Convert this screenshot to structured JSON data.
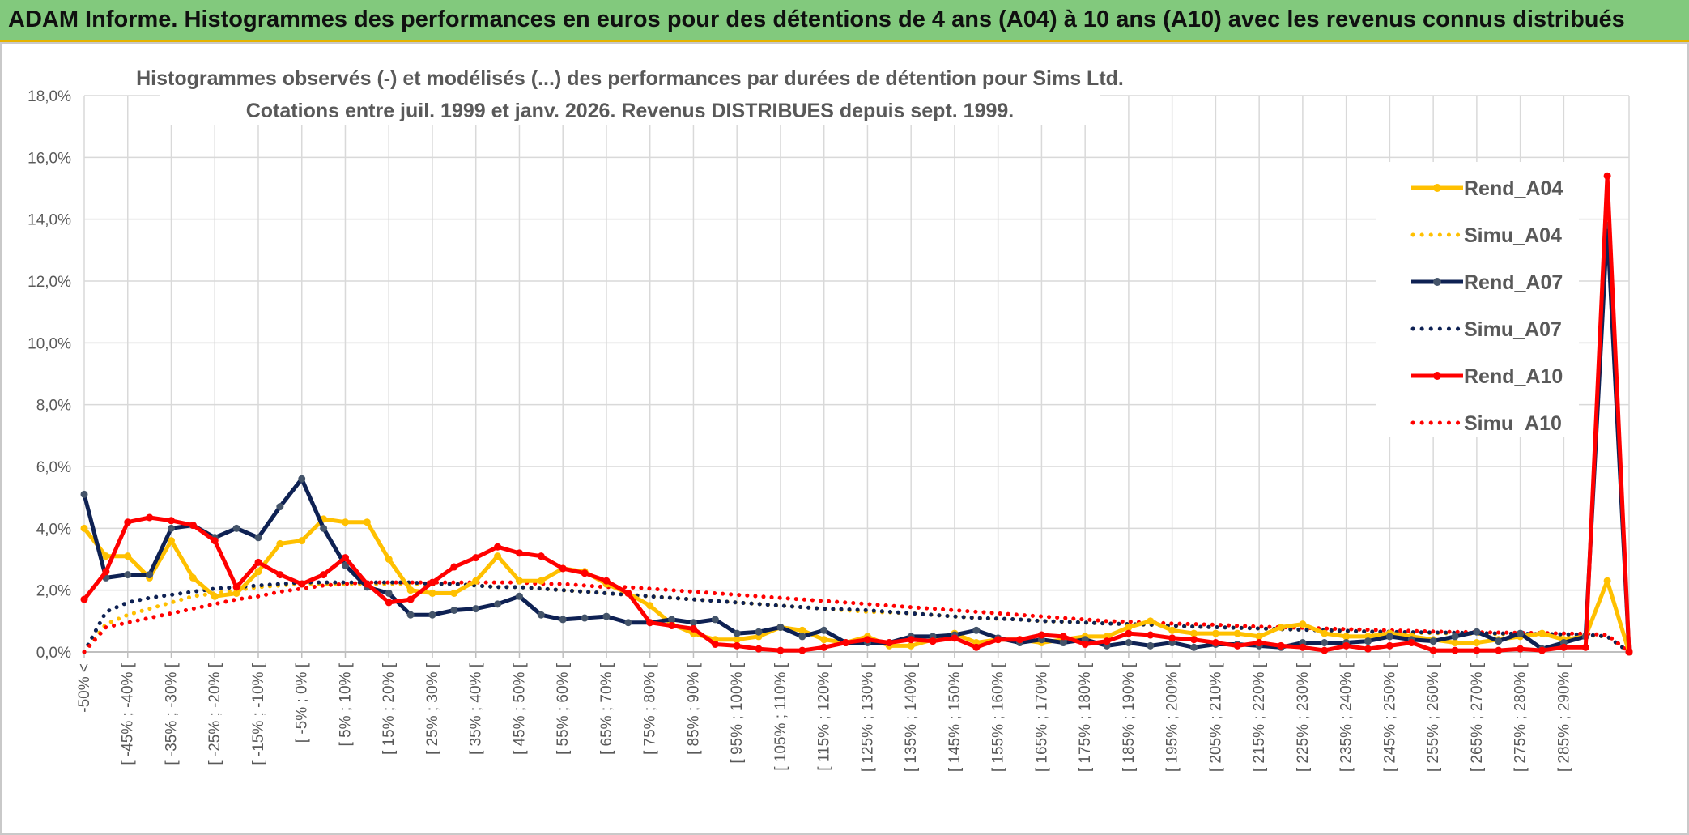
{
  "banner": {
    "title": "ADAM Informe. Histogrammes des performances en euros pour des détentions de 4 ans (A04) à 10 ans (A10) avec les revenus connus distribués"
  },
  "colors": {
    "a04": "#ffc000",
    "a07": "#0e2153",
    "a07_marker": "#44546a",
    "a10": "#ff0000",
    "grid": "#d9d9d9",
    "banner": "#82c97d"
  },
  "chart_data": {
    "type": "line",
    "title": "Histogrammes observés (-) et modélisés (...) des performances par durées de détention pour Sims Ltd.",
    "subtitle": "Cotations entre juil. 1999 et janv. 2026. Revenus DISTRIBUES depuis sept. 1999.",
    "xlabel": "",
    "ylabel": "",
    "ylim": [
      0,
      18
    ],
    "yticks": [
      "0,0%",
      "2,0%",
      "4,0%",
      "6,0%",
      "8,0%",
      "10,0%",
      "12,0%",
      "14,0%",
      "16,0%",
      "18,0%"
    ],
    "grid": true,
    "legend_position": "right",
    "category_labels": [
      "-50% <",
      "[ -45% ; -40% [",
      "[ -35% ; -30% [",
      "[ -25% ; -20% [",
      "[ -15% ; -10% [",
      "[ -5% ; 0% [",
      "[ 5% ; 10% [",
      "[ 15% ; 20% [",
      "[ 25% ; 30% [",
      "[ 35% ; 40% [",
      "[ 45% ; 50% [",
      "[ 55% ; 60% [",
      "[ 65% ; 70% [",
      "[ 75% ; 80% [",
      "[ 85% ; 90% [",
      "[ 95% ; 100% [",
      "[ 105% ; 110% [",
      "[ 115% ; 120% [",
      "[ 125% ; 130% [",
      "[ 135% ; 140% [",
      "[ 145% ; 150% [",
      "[ 155% ; 160% [",
      "[ 165% ; 170% [",
      "[ 175% ; 180% [",
      "[ 185% ; 190% [",
      "[ 195% ; 200% [",
      "[ 205% ; 210% [",
      "[ 215% ; 220% [",
      "[ 225% ; 230% [",
      "[ 235% ; 240% [",
      "[ 245% ; 250% [",
      "[ 255% ; 260% [",
      "[ 265% ; 270% [",
      "[ 275% ; 280% [",
      "[ 285% ; 290% ["
    ],
    "n_points": 72,
    "series": [
      {
        "name": "Rend_A04",
        "style": "solid",
        "color": "#ffc000",
        "values": [
          4.0,
          3.1,
          3.1,
          2.4,
          3.6,
          2.4,
          1.8,
          1.9,
          2.6,
          3.5,
          3.6,
          4.3,
          4.2,
          4.2,
          3.0,
          2.0,
          1.9,
          1.9,
          2.3,
          3.1,
          2.3,
          2.3,
          2.7,
          2.6,
          2.2,
          1.9,
          1.5,
          0.9,
          0.6,
          0.4,
          0.4,
          0.5,
          0.8,
          0.7,
          0.4,
          0.3,
          0.5,
          0.2,
          0.2,
          0.4,
          0.6,
          0.3,
          0.4,
          0.4,
          0.3,
          0.4,
          0.5,
          0.5,
          0.8,
          1.0,
          0.7,
          0.6,
          0.6,
          0.6,
          0.5,
          0.8,
          0.9,
          0.6,
          0.5,
          0.5,
          0.6,
          0.5,
          0.4,
          0.3,
          0.3,
          0.4,
          0.5,
          0.6,
          0.4,
          0.5,
          2.3,
          0.0
        ]
      },
      {
        "name": "Simu_A04",
        "style": "dotted",
        "color": "#ffc000",
        "values": [
          0.0,
          0.9,
          1.2,
          1.4,
          1.6,
          1.8,
          1.9,
          2.0,
          2.1,
          2.15,
          2.2,
          2.2,
          2.2,
          2.2,
          2.2,
          2.2,
          2.2,
          2.2,
          2.15,
          2.1,
          2.1,
          2.05,
          2.0,
          1.95,
          1.9,
          1.85,
          1.8,
          1.75,
          1.7,
          1.65,
          1.6,
          1.55,
          1.5,
          1.45,
          1.4,
          1.35,
          1.3,
          1.28,
          1.25,
          1.2,
          1.15,
          1.1,
          1.08,
          1.05,
          1.0,
          0.98,
          0.95,
          0.92,
          0.9,
          0.88,
          0.85,
          0.82,
          0.8,
          0.78,
          0.76,
          0.74,
          0.72,
          0.7,
          0.68,
          0.66,
          0.64,
          0.62,
          0.61,
          0.6,
          0.59,
          0.58,
          0.57,
          0.56,
          0.55,
          0.54,
          0.5,
          0.0
        ]
      },
      {
        "name": "Rend_A07",
        "style": "solid",
        "color": "#0e2153",
        "values": [
          5.1,
          2.4,
          2.5,
          2.5,
          4.0,
          4.1,
          3.7,
          4.0,
          3.7,
          4.7,
          5.6,
          4.0,
          2.8,
          2.1,
          1.9,
          1.2,
          1.2,
          1.35,
          1.4,
          1.55,
          1.8,
          1.2,
          1.05,
          1.1,
          1.15,
          0.95,
          0.95,
          1.05,
          0.95,
          1.05,
          0.6,
          0.65,
          0.8,
          0.5,
          0.7,
          0.3,
          0.3,
          0.3,
          0.5,
          0.5,
          0.55,
          0.7,
          0.45,
          0.3,
          0.4,
          0.3,
          0.4,
          0.2,
          0.3,
          0.2,
          0.3,
          0.15,
          0.25,
          0.25,
          0.2,
          0.15,
          0.3,
          0.3,
          0.3,
          0.35,
          0.5,
          0.4,
          0.35,
          0.5,
          0.65,
          0.35,
          0.6,
          0.1,
          0.3,
          0.5,
          13.8,
          0.0
        ]
      },
      {
        "name": "Simu_A07",
        "style": "dotted",
        "color": "#0e2153",
        "values": [
          0.0,
          1.3,
          1.6,
          1.75,
          1.85,
          1.95,
          2.05,
          2.1,
          2.15,
          2.2,
          2.25,
          2.25,
          2.25,
          2.25,
          2.25,
          2.25,
          2.2,
          2.2,
          2.15,
          2.1,
          2.1,
          2.05,
          2.0,
          1.95,
          1.9,
          1.85,
          1.8,
          1.75,
          1.7,
          1.65,
          1.6,
          1.55,
          1.5,
          1.45,
          1.4,
          1.38,
          1.35,
          1.3,
          1.25,
          1.2,
          1.15,
          1.1,
          1.08,
          1.05,
          1.0,
          0.98,
          0.95,
          0.92,
          0.9,
          0.88,
          0.85,
          0.82,
          0.8,
          0.78,
          0.76,
          0.74,
          0.72,
          0.7,
          0.68,
          0.66,
          0.65,
          0.64,
          0.63,
          0.62,
          0.61,
          0.6,
          0.59,
          0.58,
          0.57,
          0.56,
          0.5,
          0.0
        ]
      },
      {
        "name": "Rend_A10",
        "style": "solid",
        "color": "#ff0000",
        "values": [
          1.7,
          2.6,
          4.2,
          4.35,
          4.25,
          4.1,
          3.6,
          2.1,
          2.9,
          2.5,
          2.2,
          2.5,
          3.05,
          2.2,
          1.6,
          1.7,
          2.25,
          2.75,
          3.05,
          3.4,
          3.2,
          3.1,
          2.7,
          2.55,
          2.3,
          1.9,
          0.95,
          0.85,
          0.75,
          0.25,
          0.2,
          0.1,
          0.05,
          0.05,
          0.15,
          0.3,
          0.4,
          0.3,
          0.4,
          0.35,
          0.45,
          0.15,
          0.4,
          0.4,
          0.55,
          0.5,
          0.25,
          0.35,
          0.6,
          0.55,
          0.45,
          0.4,
          0.3,
          0.2,
          0.3,
          0.2,
          0.15,
          0.05,
          0.2,
          0.1,
          0.2,
          0.3,
          0.05,
          0.05,
          0.05,
          0.05,
          0.1,
          0.05,
          0.15,
          0.15,
          15.4,
          0.0
        ]
      },
      {
        "name": "Simu_A10",
        "style": "dotted",
        "color": "#ff0000",
        "values": [
          0.0,
          0.8,
          0.95,
          1.1,
          1.25,
          1.4,
          1.55,
          1.7,
          1.8,
          1.95,
          2.05,
          2.15,
          2.2,
          2.25,
          2.25,
          2.25,
          2.25,
          2.25,
          2.25,
          2.25,
          2.25,
          2.2,
          2.2,
          2.15,
          2.1,
          2.1,
          2.05,
          2.0,
          1.95,
          1.9,
          1.85,
          1.8,
          1.75,
          1.7,
          1.65,
          1.6,
          1.55,
          1.5,
          1.45,
          1.4,
          1.35,
          1.3,
          1.25,
          1.2,
          1.15,
          1.1,
          1.05,
          1.0,
          0.98,
          0.95,
          0.92,
          0.9,
          0.88,
          0.85,
          0.82,
          0.8,
          0.78,
          0.76,
          0.74,
          0.72,
          0.7,
          0.68,
          0.66,
          0.65,
          0.64,
          0.63,
          0.62,
          0.61,
          0.6,
          0.59,
          0.55,
          0.0
        ]
      }
    ]
  }
}
